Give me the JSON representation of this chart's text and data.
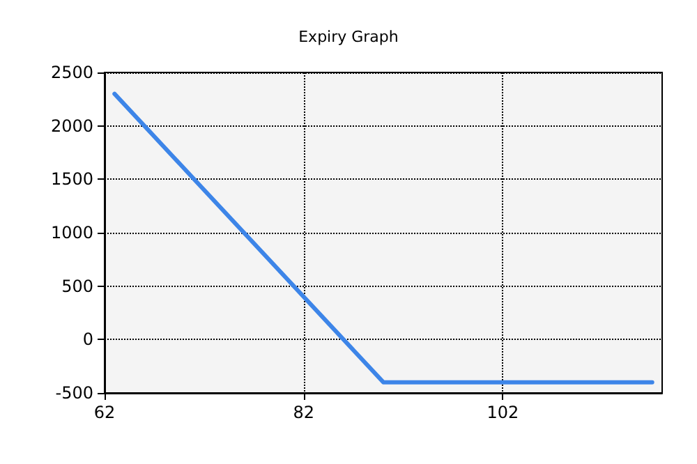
{
  "chart_data": {
    "type": "line",
    "title": "Expiry Graph",
    "x": [
      63,
      90,
      117
    ],
    "series": [
      {
        "color": "#3d85e8",
        "values": [
          2300,
          -400,
          -400
        ]
      }
    ],
    "xlim": [
      62,
      118
    ],
    "xticks": [
      62,
      82,
      102
    ],
    "ylim": [
      -500,
      2500
    ],
    "yticks": [
      -500,
      0,
      500,
      1000,
      1500,
      2000,
      2500
    ],
    "grid": true,
    "marker": "none",
    "line_style": "solid"
  }
}
